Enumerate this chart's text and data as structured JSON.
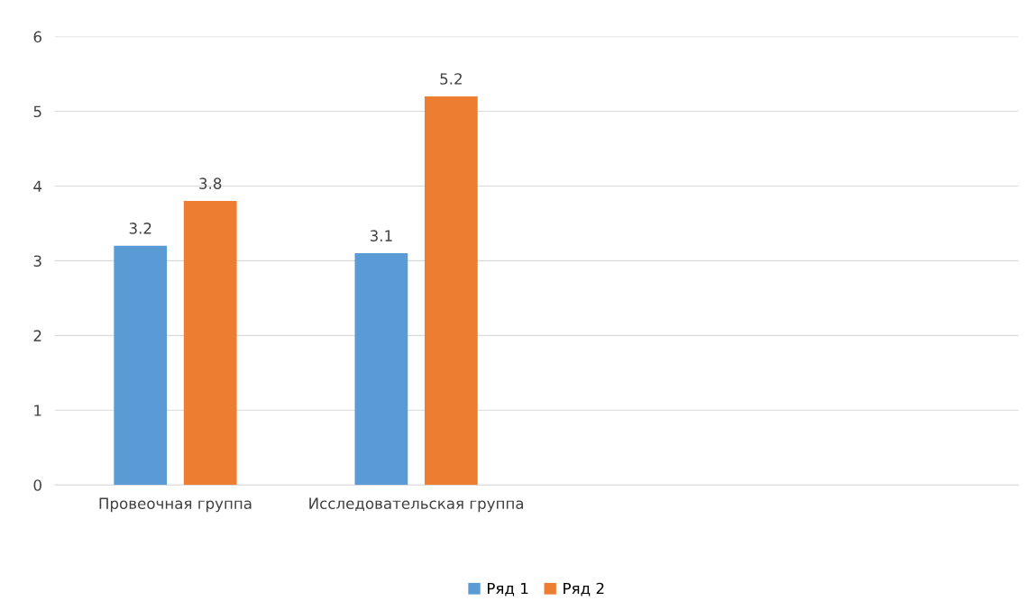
{
  "chart_data": {
    "type": "bar",
    "categories": [
      "Провеочная группа",
      "Исследовательская группа",
      null,
      null
    ],
    "series": [
      {
        "name": "Ряд 1",
        "color": "#5b9bd5",
        "values": [
          3.2,
          3.1,
          null,
          null
        ]
      },
      {
        "name": "Ряд 2",
        "color": "#ed7d31",
        "values": [
          3.8,
          5.2,
          null,
          null
        ]
      }
    ],
    "ylim": [
      0,
      6
    ],
    "yticks": [
      0,
      1,
      2,
      3,
      4,
      5,
      6
    ],
    "grid": "y",
    "legend": "bottom",
    "data_labels": true
  }
}
